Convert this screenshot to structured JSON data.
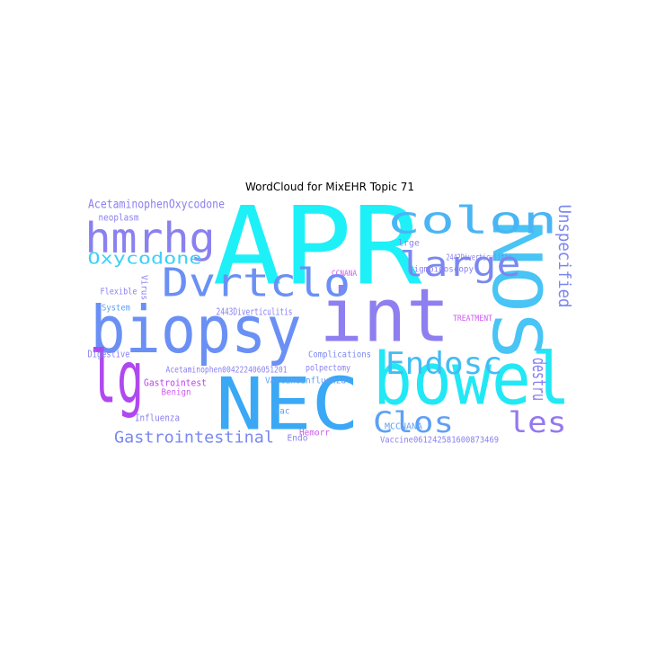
{
  "title": "WordCloud for MixEHR Topic 71",
  "words": [
    "APR",
    "bowel",
    "NEC",
    "biopsy",
    "int",
    "lg",
    "NOS",
    "Dvrtclo",
    "hmrhg",
    "colon",
    "large",
    "Endosc",
    "Clos",
    "les",
    "Unspecified",
    "destru",
    "Oxycodone",
    "AcetaminophenOxycodone",
    "Gastrointestinal",
    "Gastrointest",
    "Acetaminophen004222406051201",
    "Complications",
    "polpectomy",
    "VaccineInfluenza",
    "Influenza",
    "Benign",
    "Flexible",
    "System",
    "Digestive",
    "neoplasm",
    "2443Diverticulitis",
    "2442Diverticulitis",
    "sigmoidoscopy",
    "Vaccine061242581600873469",
    "MCCNANA",
    "TREATMENT",
    "Endo",
    "Vac",
    "Hemorr",
    "Virus",
    "CCNANA",
    "lrge"
  ]
}
